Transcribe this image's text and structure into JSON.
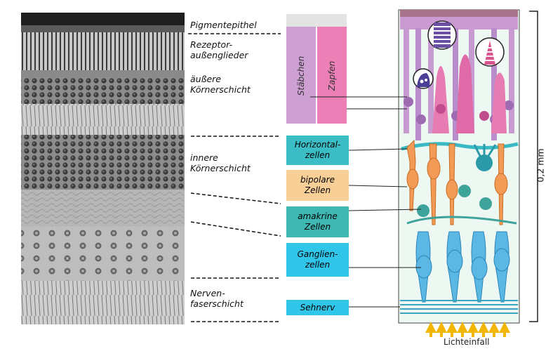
{
  "layers": [
    {
      "id": "pigment",
      "text": "Pigmentepithel"
    },
    {
      "id": "rezeptor",
      "text": "Rezeptor-\naußenglieder"
    },
    {
      "id": "aeussere",
      "text": "äußere\nKörnerschicht"
    },
    {
      "id": "innere",
      "text": "innere\nKörnerschicht"
    },
    {
      "id": "nerven",
      "text": "Nerven-\nfaserschicht"
    }
  ],
  "receptors": {
    "rods": "Stäbchen",
    "cones": "Zapfen"
  },
  "cells": [
    {
      "id": "horizontal",
      "text": "Horizontal-\nzellen",
      "color": "#3bbdc6"
    },
    {
      "id": "bipolar",
      "text": "bipolare\nZellen",
      "color": "#f7cf97"
    },
    {
      "id": "amakrin",
      "text": "amakrine\nZellen",
      "color": "#3fb8b4"
    },
    {
      "id": "ganglien",
      "text": "Ganglien-\nzellen",
      "color": "#2fc6ea"
    },
    {
      "id": "sehnerv",
      "text": "Sehnerv",
      "color": "#2fc6ea"
    }
  ],
  "scale_label": "0,2 mm",
  "light_label": "Lichteinfall",
  "colors": {
    "rods": "#c99bd0",
    "cones": "#e77cb2",
    "horizontal": "#38b9c3",
    "bipolar": "#f29a56",
    "amakrin": "#3ea39a",
    "ganglien": "#45a9d6",
    "light_arrow": "#f2b705"
  }
}
